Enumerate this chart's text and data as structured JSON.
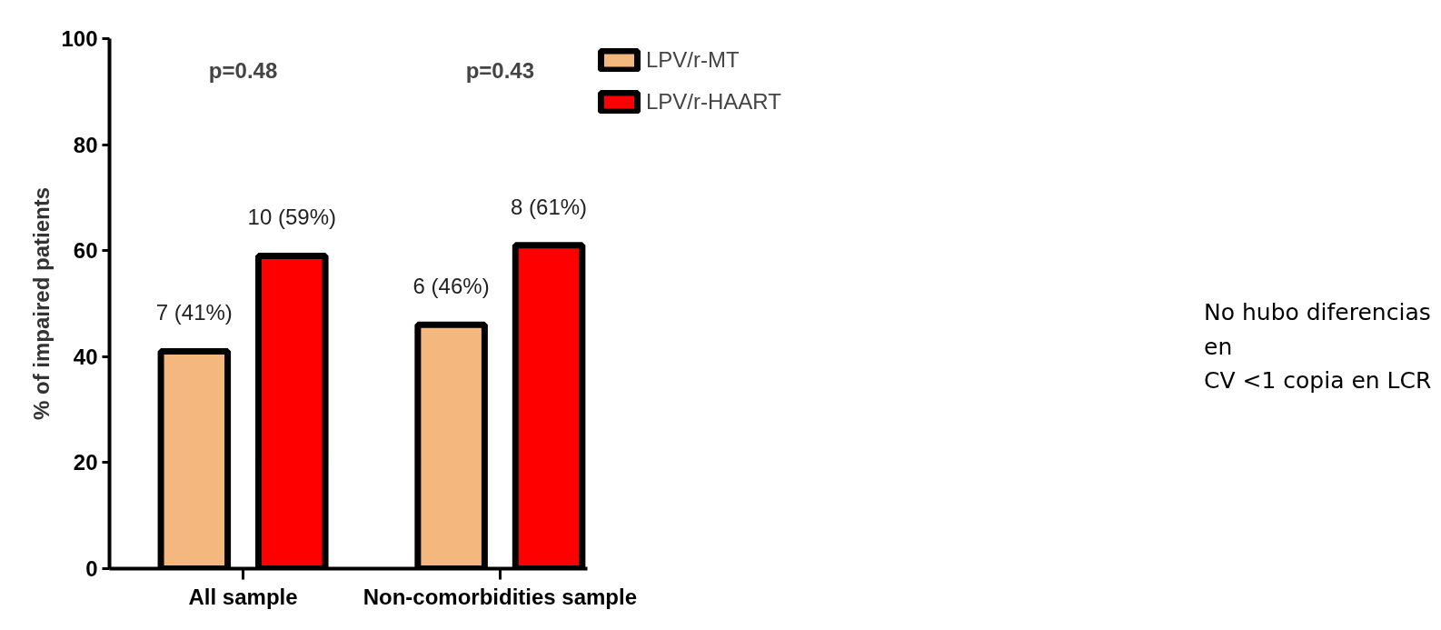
{
  "chart_data": {
    "type": "bar",
    "categories": [
      "All sample",
      "Non-comorbidities sample"
    ],
    "series": [
      {
        "name": "LPV/r-MT",
        "color": "#f4b77e",
        "values": [
          41,
          46
        ],
        "value_labels": [
          "7 (41%)",
          "6 (46%)"
        ]
      },
      {
        "name": "LPV/r-HAART",
        "color": "#ff0000",
        "values": [
          59,
          61
        ],
        "value_labels": [
          "10 (59%)",
          "8 (61%)"
        ]
      }
    ],
    "ylabel": "% of impaired patients",
    "ylim": [
      0,
      100
    ],
    "yticks": [
      0,
      20,
      40,
      60,
      80,
      100
    ],
    "grid": false,
    "legend": "top right",
    "annotations": [
      "p=0.48",
      "p=0.43",
      "No hubo diferencias en\nCV <1 copia en LCR"
    ]
  }
}
